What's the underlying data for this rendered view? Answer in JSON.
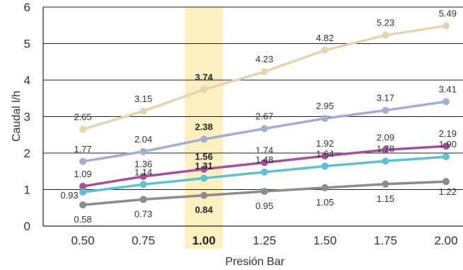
{
  "chart_data": {
    "type": "line",
    "xlabel": "Presión Bar",
    "ylabel": "Caudal l/h",
    "categories": [
      "0.50",
      "0.75",
      "1.00",
      "1.25",
      "1.50",
      "1.75",
      "2.00"
    ],
    "highlight_category": "1.00",
    "highlight_color": "#fcf0c0",
    "ylim": [
      0,
      6
    ],
    "yticks": [
      "0",
      "1",
      "2",
      "3",
      "4",
      "5",
      "6"
    ],
    "grid": true,
    "series": [
      {
        "color": "#e6d3b0",
        "values": [
          2.65,
          3.15,
          3.74,
          4.23,
          4.82,
          5.23,
          5.49
        ],
        "labels": [
          "2.65",
          "3.15",
          "3.74",
          "4.23",
          "4.82",
          "5.23",
          "5.49"
        ]
      },
      {
        "color": "#a3aed0",
        "values": [
          1.77,
          2.04,
          2.38,
          2.67,
          2.95,
          3.17,
          3.41
        ],
        "labels": [
          "1.77",
          "2.04",
          "2.38",
          "2.67",
          "2.95",
          "3.17",
          "3.41"
        ]
      },
      {
        "color": "#a5509b",
        "values": [
          1.09,
          1.36,
          1.56,
          1.74,
          1.92,
          2.09,
          2.19
        ],
        "labels": [
          "1.09",
          "1.36",
          "1.56",
          "1.74",
          "1.92",
          "2.09",
          "2.19"
        ]
      },
      {
        "color": "#5fc0d0",
        "values": [
          0.93,
          1.14,
          1.31,
          1.48,
          1.64,
          1.78,
          1.9
        ],
        "labels": [
          "0.93",
          "1.14",
          "1.31",
          "1.48",
          "1.64",
          "1.78",
          "1.90"
        ]
      },
      {
        "color": "#8c8c8c",
        "values": [
          0.58,
          0.73,
          0.84,
          0.95,
          1.05,
          1.15,
          1.22
        ],
        "labels": [
          "0.58",
          "0.73",
          "0.84",
          "0.95",
          "1.05",
          "1.15",
          "1.22"
        ]
      }
    ]
  }
}
